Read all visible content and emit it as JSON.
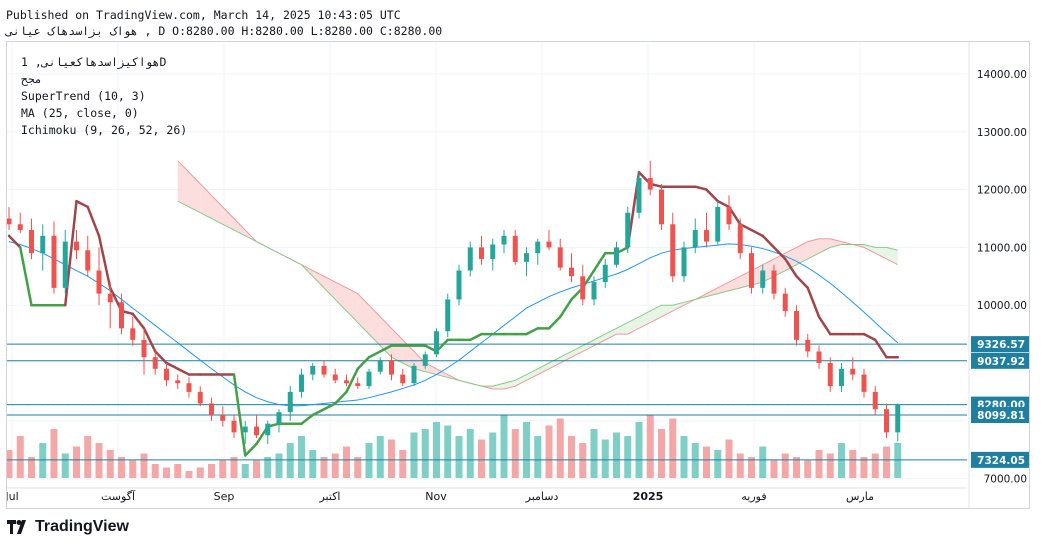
{
  "header": {
    "published": "Published on TradingView.com, March 14, 2025 10:43:05 UTC",
    "ohlc": "هواک بزاسدهاک عيانی , D O:8280.00 H:8280.00 L:8280.00 C:8280.00"
  },
  "legend": {
    "symbol": "هواکیزاسدهاکعیانی, 1D",
    "exchange": "مجح",
    "supertrend": "SuperTrend (10, 3)",
    "ma": "MA (25, close, 0)",
    "ichimoku": "Ichimoku (9, 26, 52, 26)"
  },
  "footer": {
    "brand": "TradingView"
  },
  "colors": {
    "up": "#26a69a",
    "down": "#ef5350",
    "st_up": "#43a047",
    "st_down": "#a0464a",
    "ma": "#2196f3",
    "cloud_red": "#fbd8d8",
    "cloud_green": "#e2f3e2",
    "span_a": "#8bc98b",
    "span_b": "#ef9a9a",
    "hline": "#1e7fa0",
    "vol_up": "#7fcfc6",
    "vol_down": "#f4a7a7"
  },
  "chart_data": {
    "type": "candlestick",
    "y_ticks": [
      "14000.00",
      "13000.00",
      "12000.00",
      "11000.00",
      "10000.00",
      "7000.00"
    ],
    "x_ticks": [
      "Jul",
      "آگوست",
      "Sep",
      "اکتبر",
      "Nov",
      "دسامبر",
      "2025",
      "فوریه",
      "مارس"
    ],
    "price_lines": [
      {
        "label": "9326.57",
        "value": 9326.57
      },
      {
        "label": "9037.92",
        "value": 9037.92
      },
      {
        "label": "8280.00",
        "value": 8280.0
      },
      {
        "label": "8099.81",
        "value": 8099.81
      },
      {
        "label": "7324.05",
        "value": 7324.05
      }
    ],
    "last_price": 8280.0,
    "candles": [
      [
        11500,
        11700,
        11300,
        11400
      ],
      [
        11400,
        11600,
        11250,
        11300
      ],
      [
        11300,
        11500,
        10800,
        10900
      ],
      [
        10900,
        11400,
        10600,
        11200
      ],
      [
        11200,
        11450,
        10200,
        10300
      ],
      [
        10300,
        11300,
        10200,
        11100
      ],
      [
        11100,
        11300,
        10800,
        10950
      ],
      [
        10950,
        11200,
        10500,
        10600
      ],
      [
        10600,
        11000,
        10000,
        10200
      ],
      [
        10200,
        10400,
        9600,
        10050
      ],
      [
        10050,
        10200,
        9500,
        9600
      ],
      [
        9600,
        9800,
        9300,
        9400
      ],
      [
        9400,
        9600,
        8800,
        9100
      ],
      [
        9100,
        9200,
        8800,
        8900
      ],
      [
        8900,
        9000,
        8600,
        8700
      ],
      [
        8700,
        8800,
        8550,
        8650
      ],
      [
        8650,
        8750,
        8400,
        8500
      ],
      [
        8500,
        8600,
        8250,
        8300
      ],
      [
        8300,
        8400,
        8000,
        8100
      ],
      [
        8100,
        8250,
        7900,
        8000
      ],
      [
        8000,
        8100,
        7700,
        7800
      ],
      [
        7800,
        8000,
        7600,
        7900
      ],
      [
        7900,
        8100,
        7700,
        7750
      ],
      [
        7750,
        8000,
        7600,
        7950
      ],
      [
        7950,
        8200,
        7800,
        8150
      ],
      [
        8150,
        8600,
        8000,
        8500
      ],
      [
        8500,
        8900,
        8400,
        8800
      ],
      [
        8800,
        9000,
        8700,
        8950
      ],
      [
        8950,
        9050,
        8750,
        8800
      ],
      [
        8800,
        8900,
        8650,
        8700
      ],
      [
        8700,
        8800,
        8600,
        8650
      ],
      [
        8650,
        8750,
        8550,
        8600
      ],
      [
        8600,
        8900,
        8550,
        8850
      ],
      [
        8850,
        9100,
        8800,
        9050
      ],
      [
        9050,
        9150,
        8700,
        8800
      ],
      [
        8800,
        8900,
        8600,
        8650
      ],
      [
        8650,
        9000,
        8600,
        8950
      ],
      [
        8950,
        9200,
        8900,
        9150
      ],
      [
        9150,
        9600,
        9100,
        9550
      ],
      [
        9550,
        10200,
        9450,
        10100
      ],
      [
        10100,
        10700,
        10000,
        10600
      ],
      [
        10600,
        11100,
        10500,
        11000
      ],
      [
        11000,
        11200,
        10700,
        10800
      ],
      [
        10800,
        11150,
        10600,
        11050
      ],
      [
        11050,
        11300,
        10900,
        11200
      ],
      [
        11200,
        11300,
        10700,
        10750
      ],
      [
        10750,
        11000,
        10500,
        10900
      ],
      [
        10900,
        11150,
        10700,
        11100
      ],
      [
        11100,
        11300,
        10950,
        11000
      ],
      [
        11000,
        11150,
        10600,
        10650
      ],
      [
        10650,
        10900,
        10400,
        10500
      ],
      [
        10500,
        10700,
        10000,
        10100
      ],
      [
        10100,
        10500,
        10000,
        10400
      ],
      [
        10400,
        10800,
        10300,
        10700
      ],
      [
        10700,
        11100,
        10650,
        11000
      ],
      [
        11000,
        11700,
        10900,
        11600
      ],
      [
        11600,
        12300,
        11500,
        12200
      ],
      [
        12200,
        12500,
        11900,
        12000
      ],
      [
        12000,
        12100,
        11300,
        11400
      ],
      [
        11400,
        11600,
        10400,
        10500
      ],
      [
        10500,
        11100,
        10400,
        11000
      ],
      [
        11000,
        11500,
        10900,
        11300
      ],
      [
        11300,
        11600,
        11000,
        11100
      ],
      [
        11100,
        11800,
        11050,
        11700
      ],
      [
        11700,
        11900,
        11300,
        11400
      ],
      [
        11400,
        11500,
        10800,
        10900
      ],
      [
        10900,
        11000,
        10200,
        10300
      ],
      [
        10300,
        10700,
        10200,
        10600
      ],
      [
        10600,
        10700,
        10100,
        10200
      ],
      [
        10200,
        10300,
        9800,
        9900
      ],
      [
        9900,
        10000,
        9300,
        9400
      ],
      [
        9400,
        9500,
        9100,
        9200
      ],
      [
        9200,
        9300,
        8900,
        9000
      ],
      [
        9000,
        9100,
        8500,
        8600
      ],
      [
        8600,
        9000,
        8500,
        8900
      ],
      [
        8900,
        9100,
        8700,
        8800
      ],
      [
        8800,
        8900,
        8400,
        8500
      ],
      [
        8500,
        8600,
        8100,
        8200
      ],
      [
        8200,
        8300,
        7700,
        7800
      ],
      [
        7800,
        8300,
        7650,
        8280
      ]
    ],
    "volumes": [
      0.4,
      0.6,
      0.3,
      0.5,
      0.7,
      0.35,
      0.45,
      0.6,
      0.5,
      0.4,
      0.3,
      0.25,
      0.35,
      0.2,
      0.15,
      0.2,
      0.1,
      0.15,
      0.2,
      0.25,
      0.3,
      0.2,
      0.25,
      0.3,
      0.35,
      0.5,
      0.6,
      0.4,
      0.3,
      0.35,
      0.45,
      0.3,
      0.5,
      0.6,
      0.55,
      0.4,
      0.65,
      0.7,
      0.8,
      0.75,
      0.6,
      0.7,
      0.55,
      0.65,
      0.9,
      0.7,
      0.8,
      0.6,
      0.75,
      0.85,
      0.6,
      0.5,
      0.7,
      0.55,
      0.65,
      0.6,
      0.8,
      0.9,
      0.7,
      0.85,
      0.6,
      0.5,
      0.45,
      0.4,
      0.55,
      0.35,
      0.3,
      0.45,
      0.25,
      0.35,
      0.3,
      0.25,
      0.4,
      0.35,
      0.5,
      0.4,
      0.3,
      0.35,
      0.45,
      0.5
    ],
    "ma": [
      11100,
      11050,
      10980,
      10900,
      10800,
      10700,
      10600,
      10500,
      10380,
      10250,
      10100,
      9950,
      9800,
      9650,
      9500,
      9350,
      9200,
      9050,
      8900,
      8760,
      8620,
      8500,
      8400,
      8330,
      8280,
      8260,
      8260,
      8280,
      8300,
      8320,
      8340,
      8360,
      8400,
      8450,
      8500,
      8560,
      8620,
      8700,
      8800,
      8920,
      9050,
      9200,
      9350,
      9500,
      9650,
      9800,
      9950,
      10050,
      10150,
      10230,
      10300,
      10360,
      10420,
      10480,
      10540,
      10620,
      10720,
      10820,
      10900,
      10950,
      10980,
      11000,
      11020,
      11040,
      11060,
      11050,
      11020,
      10980,
      10920,
      10850,
      10760,
      10650,
      10520,
      10380,
      10220,
      10050,
      9880,
      9700,
      9520,
      9350
    ],
    "supertrend": [
      11200,
      11000,
      10000,
      10000,
      10000,
      10000,
      11800,
      11700,
      11200,
      10300,
      9900,
      9850,
      9600,
      9200,
      9000,
      8900,
      8800,
      8800,
      8800,
      8800,
      8800,
      7400,
      7600,
      7900,
      7950,
      7950,
      7950,
      8100,
      8200,
      8300,
      8500,
      8900,
      9100,
      9200,
      9300,
      9300,
      9300,
      9300,
      9200,
      9400,
      9400,
      9400,
      9500,
      9500,
      9500,
      9500,
      9500,
      9600,
      9600,
      9800,
      10100,
      10300,
      10600,
      10900,
      10900,
      11000,
      12300,
      12100,
      12050,
      12050,
      12050,
      12050,
      12000,
      11800,
      11700,
      11400,
      11300,
      11200,
      11000,
      10800,
      10500,
      10300,
      9800,
      9500,
      9500,
      9500,
      9500,
      9400,
      9100,
      9100
    ],
    "supertrend_dir": [
      "d",
      "d",
      "u",
      "u",
      "u",
      "u",
      "d",
      "d",
      "d",
      "d",
      "d",
      "d",
      "d",
      "d",
      "d",
      "d",
      "d",
      "d",
      "d",
      "d",
      "d",
      "u",
      "u",
      "u",
      "u",
      "u",
      "u",
      "u",
      "u",
      "u",
      "u",
      "u",
      "u",
      "u",
      "u",
      "u",
      "u",
      "u",
      "u",
      "u",
      "u",
      "u",
      "u",
      "u",
      "u",
      "u",
      "u",
      "u",
      "u",
      "u",
      "u",
      "u",
      "u",
      "u",
      "u",
      "u",
      "d",
      "d",
      "d",
      "d",
      "d",
      "d",
      "d",
      "d",
      "d",
      "d",
      "d",
      "d",
      "d",
      "d",
      "d",
      "d",
      "d",
      "d",
      "d",
      "d",
      "d",
      "d",
      "d",
      "d"
    ],
    "cloud_a": [
      12500,
      12300,
      12100,
      11900,
      11700,
      11500,
      11300,
      11100,
      11000,
      10900,
      10800,
      10700,
      10600,
      10500,
      10400,
      10300,
      10200,
      10000,
      9800,
      9600,
      9400,
      9200,
      9000,
      8900,
      8800,
      8700,
      8650,
      8600,
      8550,
      8550,
      8600,
      8700,
      8800,
      8900,
      9000,
      9100,
      9200,
      9300,
      9400,
      9500,
      9500,
      9600,
      9700,
      9800,
      9900,
      10000,
      10100,
      10200,
      10300,
      10400,
      10500,
      10600,
      10700,
      10800,
      10900,
      11000,
      11100,
      11150,
      11150,
      11100,
      11050,
      11000,
      10900,
      10800,
      10700
    ],
    "cloud_b": [
      11800,
      11700,
      11600,
      11500,
      11400,
      11300,
      11200,
      11100,
      11000,
      10900,
      10800,
      10700,
      10500,
      10300,
      10100,
      9900,
      9700,
      9500,
      9300,
      9100,
      9000,
      8900,
      8850,
      8800,
      8750,
      8700,
      8650,
      8600,
      8600,
      8650,
      8700,
      8800,
      8900,
      9000,
      9100,
      9200,
      9300,
      9400,
      9500,
      9600,
      9700,
      9800,
      9900,
      10000,
      10000,
      10050,
      10100,
      10150,
      10200,
      10250,
      10300,
      10350,
      10400,
      10500,
      10600,
      10700,
      10800,
      10900,
      11000,
      11050,
      11050,
      11050,
      11000,
      11000,
      10950
    ]
  }
}
